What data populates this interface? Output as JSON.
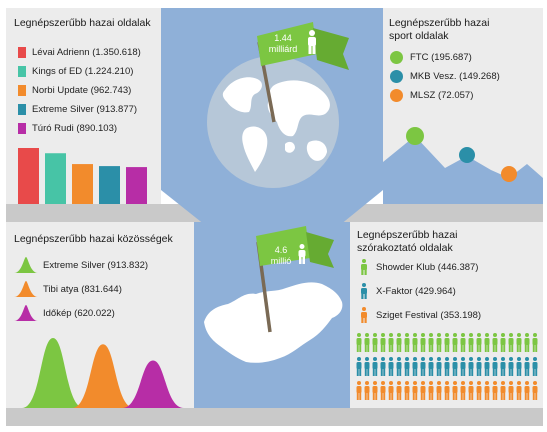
{
  "sections": {
    "top_left": {
      "title": "Legnépszerűbb hazai oldalak",
      "items": [
        {
          "label": "Lévai Adrienn (1.350.618)",
          "value": 1350618,
          "color": "#e84a4a"
        },
        {
          "label": "Kings of ED (1.224.210)",
          "value": 1224210,
          "color": "#47c4a6"
        },
        {
          "label": "Norbi Update (962.743)",
          "value": 962743,
          "color": "#f28b2c"
        },
        {
          "label": "Extreme Silver (913.877)",
          "value": 913877,
          "color": "#2b8fa8"
        },
        {
          "label": "Túró Rudi (890.103)",
          "value": 890103,
          "color": "#b72da6"
        }
      ]
    },
    "top_right": {
      "title_line1": "Legnépszerűbb hazai",
      "title_line2": "sport oldalak",
      "items": [
        {
          "label": "FTC (195.687)",
          "value": 195687,
          "color": "#7cc642"
        },
        {
          "label": "MKB Vesz. (149.268)",
          "value": 149268,
          "color": "#2b8fa8"
        },
        {
          "label": "MLSZ (72.057)",
          "value": 72057,
          "color": "#f28b2c"
        }
      ]
    },
    "center_top": {
      "flag_value": "1.44",
      "flag_unit": "milliárd",
      "flag_icon": "person-icon"
    },
    "bottom_left": {
      "title": "Legnépszerűbb hazai közösségek",
      "items": [
        {
          "label": "Extreme Silver (913.832)",
          "value": 913832,
          "color": "#7cc642"
        },
        {
          "label": "Tibi atya (831.644)",
          "value": 831644,
          "color": "#f28b2c"
        },
        {
          "label": "Időkép (620.022)",
          "value": 620022,
          "color": "#b72da6"
        }
      ]
    },
    "center_bottom": {
      "flag_value": "4.6",
      "flag_unit": "millió",
      "flag_icon": "person-icon"
    },
    "bottom_right": {
      "title_line1": "Legnépszerűbb hazai",
      "title_line2": "szórakoztató oldalak",
      "items": [
        {
          "label": "Showder Klub (446.387)",
          "value": 446387,
          "color": "#7cc642"
        },
        {
          "label": "X-Faktor (429.964)",
          "value": 429964,
          "color": "#2b8fa8"
        },
        {
          "label": "Sziget Festival (353.198)",
          "value": 353198,
          "color": "#f28b2c"
        }
      ]
    }
  },
  "colors": {
    "panel": "#ececec",
    "blue_panel": "#8fb0d8",
    "floor": "#c9c9c9",
    "flag": "#7cc642",
    "globe": "#b6c7d8"
  }
}
